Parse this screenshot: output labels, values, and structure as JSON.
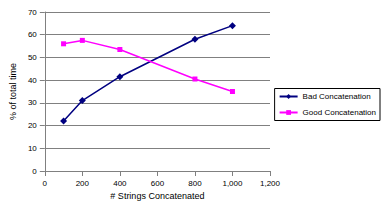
{
  "chart_data": {
    "type": "line",
    "x_label": "# Strings Concatenated",
    "y_label": "% of total time",
    "x": [
      100,
      200,
      400,
      800,
      1000
    ],
    "series": [
      {
        "name": "Bad Concatenation",
        "color": "#000080",
        "marker": "diamond",
        "values": [
          22,
          31,
          41.5,
          58,
          64
        ]
      },
      {
        "name": "Good Concatenation",
        "color": "#ff00ff",
        "marker": "square",
        "values": [
          56,
          57.5,
          53.5,
          40.5,
          35
        ]
      }
    ],
    "xlim": [
      0,
      1200
    ],
    "xticks": [
      0,
      200,
      400,
      600,
      800,
      1000,
      1200
    ],
    "ylim": [
      0,
      70
    ],
    "yticks": [
      0,
      10,
      20,
      30,
      40,
      50,
      60,
      70
    ],
    "grid": true,
    "legend": "right"
  }
}
